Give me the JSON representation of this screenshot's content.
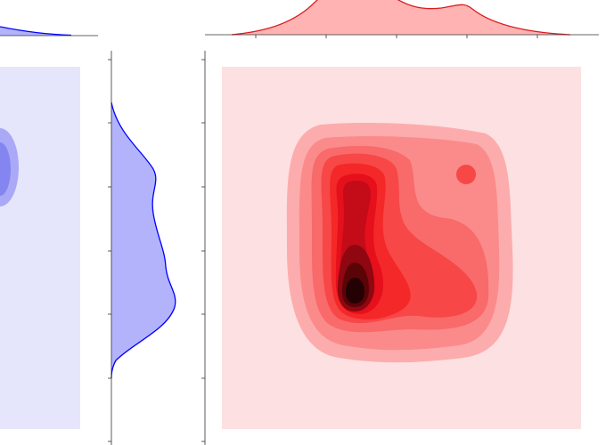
{
  "chart_data": [
    {
      "type": "kde-joint",
      "color": "#0000ff",
      "marginal_fill": "#b3b3fb",
      "background": "#e5e5fc",
      "levels": [
        "#a9a9f8",
        "#8585f2"
      ]
    },
    {
      "type": "kde-joint",
      "color": "#dd1c1c",
      "marginal_fill": "#ffb3b3",
      "background": "#fde0e1",
      "levels": [
        "#fcacac",
        "#fb8b8b",
        "#f96a6a",
        "#f74747",
        "#f42828",
        "#e5101b",
        "#c40b18",
        "#8f0710",
        "#5a0408",
        "#240102"
      ]
    }
  ]
}
